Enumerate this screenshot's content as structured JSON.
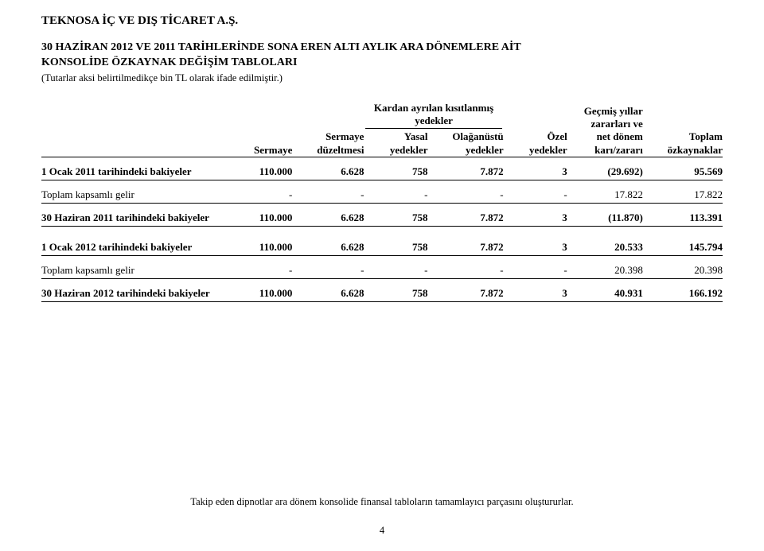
{
  "company": "TEKNOSA İÇ VE DIŞ TİCARET A.Ş.",
  "title_line1": "30 HAZİRAN 2012 VE 2011 TARİHLERİNDE SONA EREN ALTI AYLIK ARA DÖNEMLERE AİT",
  "title_line2": "KONSOLİDE ÖZKAYNAK DEĞİŞİM TABLOLARI",
  "subtitle": "(Tutarlar aksi belirtilmedikçe bin TL olarak ifade edilmiştir.)",
  "header": {
    "span_kardan": "Kardan ayrılan kısıtlanmış yedekler",
    "c1_l1": "",
    "c1_l2": "Sermaye",
    "c2_l1": "Sermaye",
    "c2_l2": "düzeltmesi",
    "c3_l1": "Yasal",
    "c3_l2": "yedekler",
    "c4_l1": "Olağanüstü",
    "c4_l2": "yedekler",
    "c5_l1": "Özel",
    "c5_l2": "yedekler",
    "c6_l1": "Geçmiş yıllar",
    "c6_l2": "zararları ve",
    "c6_l3": "net dönem",
    "c6_l4": "karı/zararı",
    "c7_l1": "Toplam",
    "c7_l2": "özkaynaklar"
  },
  "rows": {
    "r1": {
      "label": "1 Ocak 2011 tarihindeki bakiyeler",
      "v": [
        "110.000",
        "6.628",
        "758",
        "7.872",
        "3",
        "(29.692)",
        "95.569"
      ]
    },
    "r2": {
      "label": "Toplam kapsamlı gelir",
      "v": [
        "-",
        "-",
        "-",
        "-",
        "-",
        "17.822",
        "17.822"
      ]
    },
    "r3": {
      "label": "30 Haziran 2011 tarihindeki bakiyeler",
      "v": [
        "110.000",
        "6.628",
        "758",
        "7.872",
        "3",
        "(11.870)",
        "113.391"
      ]
    },
    "r4": {
      "label": "1 Ocak 2012 tarihindeki bakiyeler",
      "v": [
        "110.000",
        "6.628",
        "758",
        "7.872",
        "3",
        "20.533",
        "145.794"
      ]
    },
    "r5": {
      "label": "Toplam kapsamlı gelir",
      "v": [
        "-",
        "-",
        "-",
        "-",
        "-",
        "20.398",
        "20.398"
      ]
    },
    "r6": {
      "label": "30 Haziran 2012 tarihindeki bakiyeler",
      "v": [
        "110.000",
        "6.628",
        "758",
        "7.872",
        "3",
        "40.931",
        "166.192"
      ]
    }
  },
  "footnote": "Takip eden dipnotlar ara dönem konsolide finansal tabloların tamamlayıcı parçasını oluştururlar.",
  "pagenum": "4"
}
